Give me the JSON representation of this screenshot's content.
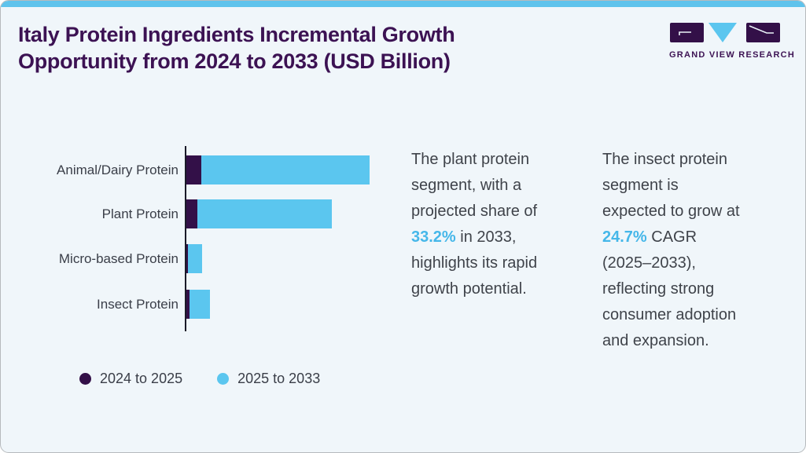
{
  "header": {
    "title_lines": [
      "Italy Protein Ingredients Incremental Growth",
      "Opportunity from 2024 to 2033 (USD Billion)"
    ]
  },
  "logo": {
    "wordmark": "GRAND VIEW RESEARCH"
  },
  "chart_data": {
    "type": "bar",
    "orientation": "horizontal",
    "stacked": true,
    "title": "Italy Protein Ingredients Incremental Growth Opportunity from 2024 to 2033 (USD Billion)",
    "xlabel": "",
    "ylabel": "",
    "value_axis_labels_visible": false,
    "note": "No numeric axis shown in figure; values are relative stacked bar lengths estimated from pixels (1 unit = 1 px)",
    "categories": [
      "Animal/Dairy Protein",
      "Plant Protein",
      "Micro-based Protein",
      "Insect Protein"
    ],
    "series": [
      {
        "name": "2024 to 2025",
        "color": "#331048",
        "values": [
          19,
          14,
          2,
          4
        ]
      },
      {
        "name": "2025 to 2033",
        "color": "#5bc6ef",
        "values": [
          214,
          171,
          18,
          26
        ]
      }
    ],
    "legend_position": "bottom-left"
  },
  "insights": {
    "p1": {
      "before": "The plant protein segment, with a projected share of ",
      "highlight": "33.2%",
      "after": " in 2033, highlights its rapid growth potential."
    },
    "p2": {
      "before": "The insect protein segment is expected to grow at ",
      "highlight": "24.7%",
      "after": " CAGR (2025–2033), reflecting strong consumer adoption and expansion."
    }
  },
  "colors": {
    "brand_purple": "#3c1253",
    "bar_dark_purple": "#331048",
    "bar_light_blue": "#5bc6ef",
    "accent_bar": "#5fc3ec",
    "highlight_text": "#45b7e9",
    "body_text": "#3f434a",
    "card_background": "#f0f6fa"
  }
}
